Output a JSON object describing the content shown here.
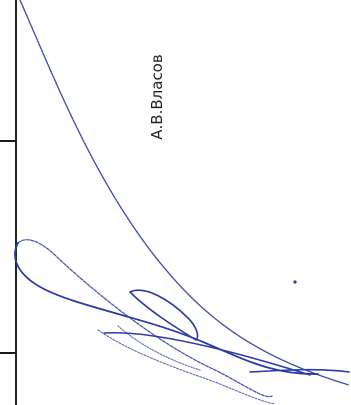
{
  "document": {
    "signatory_name": "А.В.Власов",
    "signature": {
      "kind": "handwritten signature",
      "ink_color": "#2c3aa6"
    },
    "colors": {
      "paper": "#ffffff",
      "rule": "#1e2a1e",
      "text": "#222222"
    }
  }
}
